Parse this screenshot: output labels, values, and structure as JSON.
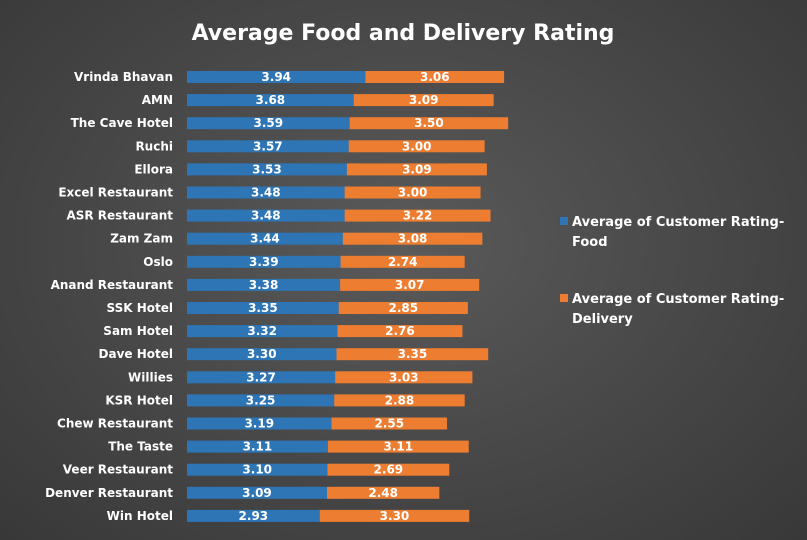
{
  "chart_data": {
    "type": "bar",
    "orientation": "horizontal",
    "stacked": true,
    "title": "Average Food and Delivery Rating",
    "categories": [
      "Vrinda Bhavan",
      "AMN",
      "The Cave Hotel",
      "Ruchi",
      "Ellora",
      "Excel Restaurant",
      "ASR Restaurant",
      "Zam Zam",
      "Oslo",
      "Anand Restaurant",
      "SSK Hotel",
      "Sam Hotel",
      "Dave Hotel",
      "Willies",
      "KSR Hotel",
      "Chew Restaurant",
      "The Taste",
      "Veer Restaurant",
      "Denver Restaurant",
      "Win Hotel"
    ],
    "series": [
      {
        "name": "Average of Customer Rating-Food",
        "color": "#2e75b6",
        "values": [
          3.94,
          3.68,
          3.59,
          3.57,
          3.53,
          3.48,
          3.48,
          3.44,
          3.39,
          3.38,
          3.35,
          3.32,
          3.3,
          3.27,
          3.25,
          3.19,
          3.11,
          3.1,
          3.09,
          2.93
        ],
        "labels": [
          "3.94",
          "3.68",
          "3.59",
          "3.57",
          "3.53",
          "3.48",
          "3.48",
          "3.44",
          "3.39",
          "3.38",
          "3.35",
          "3.32",
          "3.30",
          "3.27",
          "3.25",
          "3.19",
          "3.11",
          "3.10",
          "3.09",
          "2.93"
        ]
      },
      {
        "name": "Average of Customer Rating-Delivery",
        "color": "#ed7d31",
        "values": [
          3.06,
          3.09,
          3.5,
          3.0,
          3.09,
          3.0,
          3.22,
          3.08,
          2.74,
          3.07,
          2.85,
          2.76,
          3.35,
          3.03,
          2.88,
          2.55,
          3.11,
          2.69,
          2.48,
          3.3
        ],
        "labels": [
          "3.06",
          "3.09",
          "3.50",
          "3.00",
          "3.09",
          "3.00",
          "3.22",
          "3.08",
          "2.74",
          "3.07",
          "2.85",
          "2.76",
          "3.35",
          "3.03",
          "2.88",
          "2.55",
          "3.11",
          "2.69",
          "2.48",
          "3.30"
        ]
      }
    ],
    "legend": {
      "position": "right",
      "entries": [
        [
          "Average of Customer Rating-",
          "Food"
        ],
        [
          "Average of Customer Rating-",
          "Delivery"
        ]
      ]
    },
    "grid": false,
    "xaxis_visible": false
  }
}
